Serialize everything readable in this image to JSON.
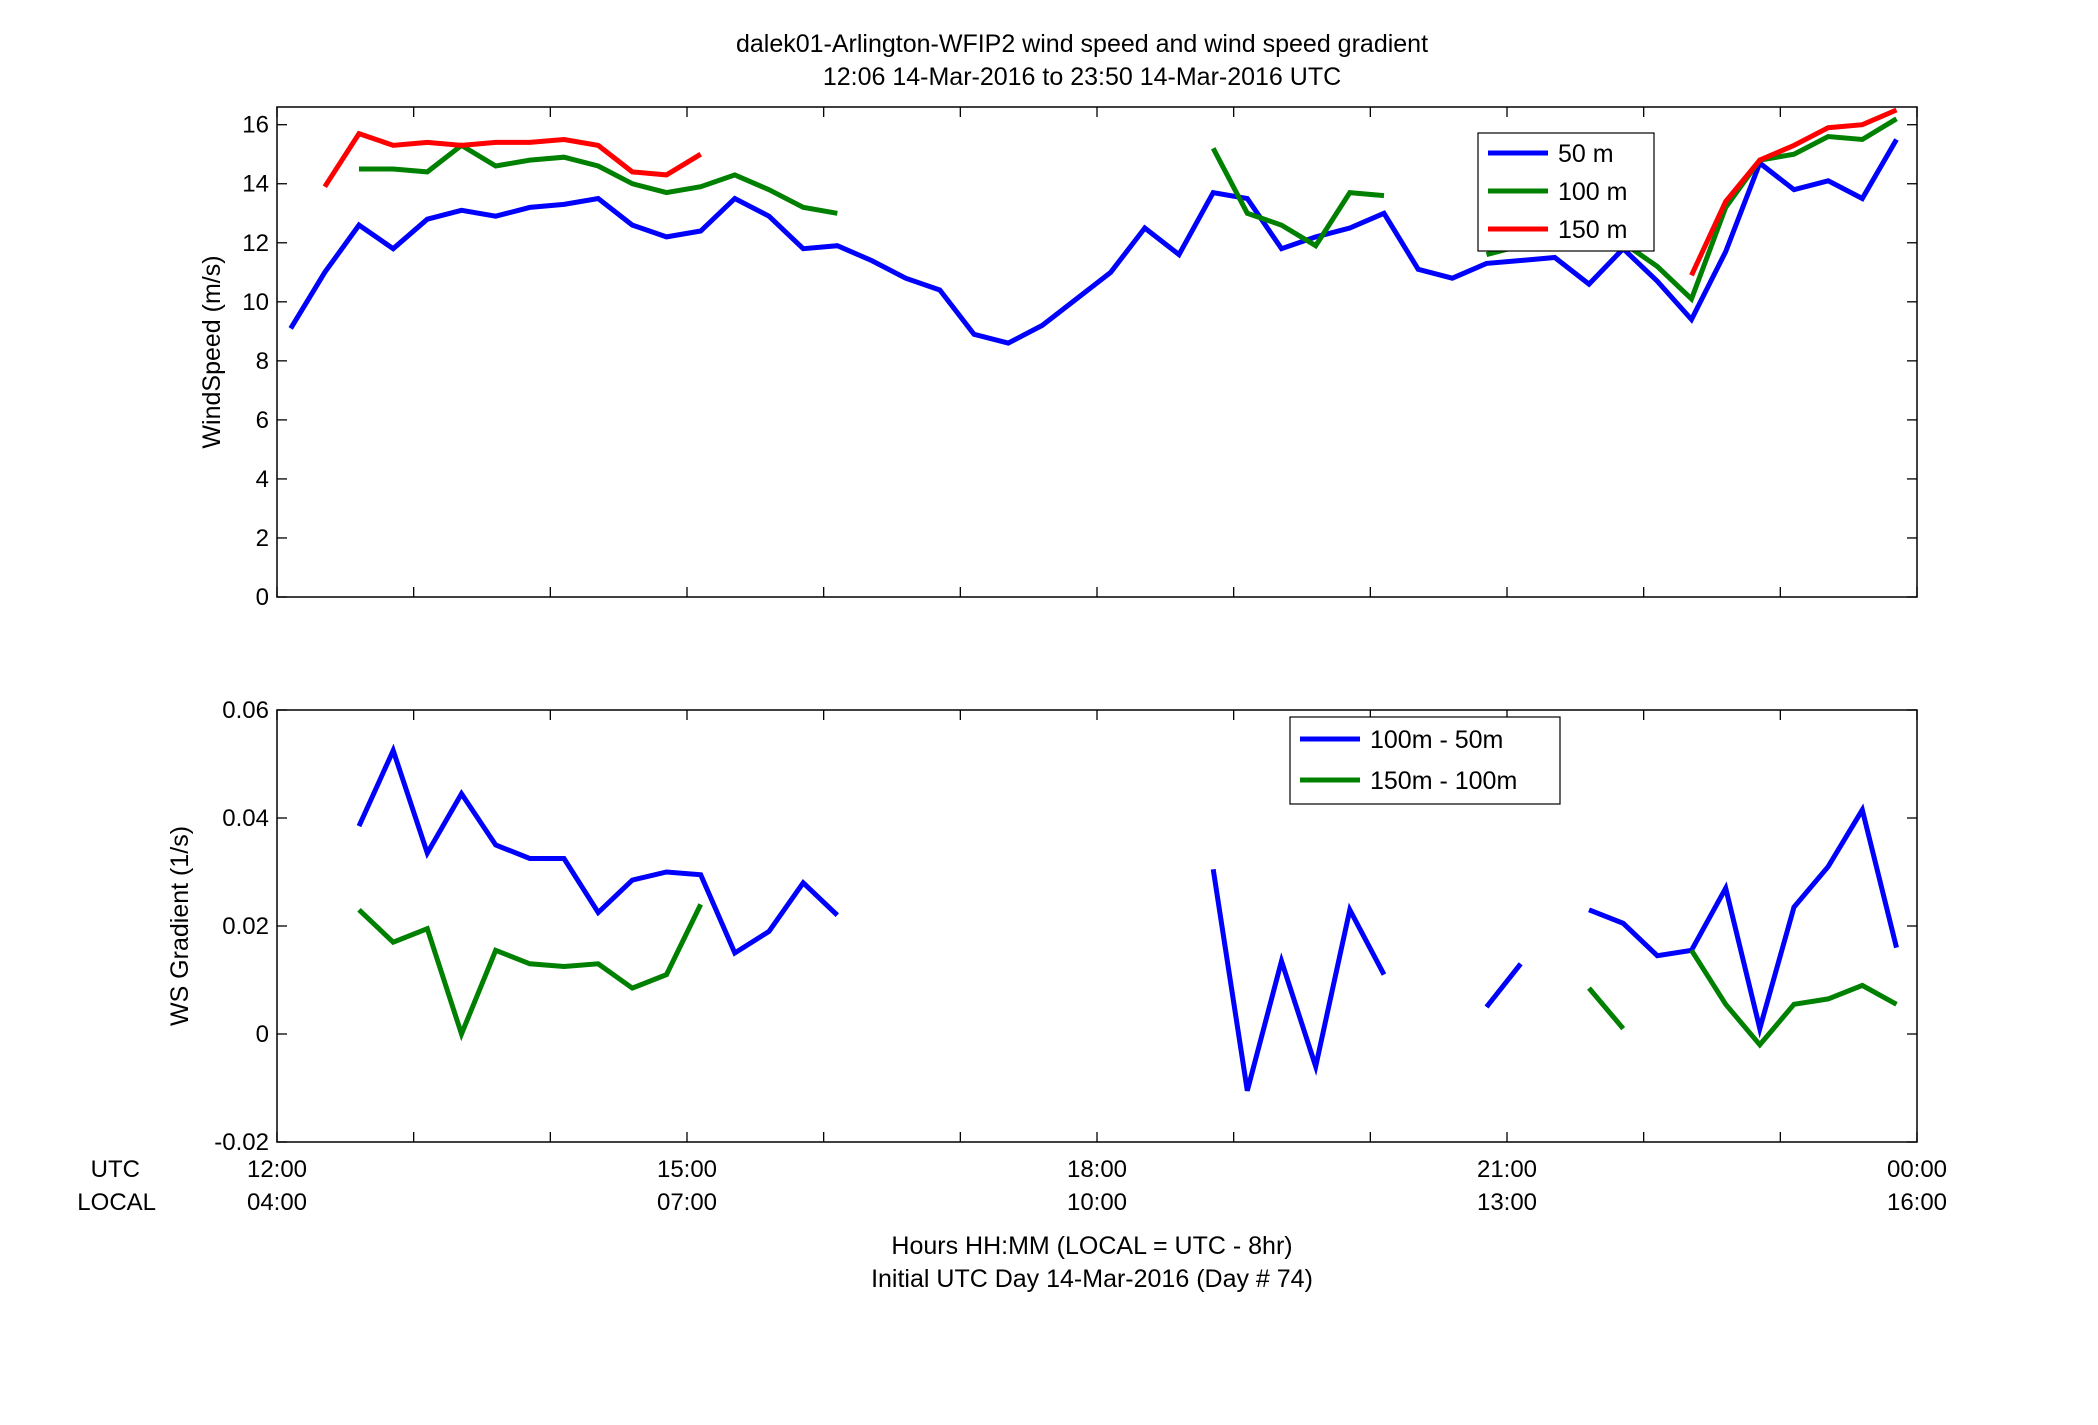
{
  "figure": {
    "title_line1": "dalek01-Arlington-WFIP2  wind speed and wind speed gradient",
    "title_line2": "12:06 14-Mar-2016 to 23:50 14-Mar-2016  UTC",
    "xlabel_line1": "Hours HH:MM  (LOCAL = UTC - 8hr)",
    "xlabel_line2": "Initial UTC Day 14-Mar-2016 (Day # 74)",
    "row_label_utc": "UTC",
    "row_label_local": "LOCAL",
    "utc_ticks": [
      "12:00",
      "15:00",
      "18:00",
      "21:00",
      "00:00"
    ],
    "local_ticks": [
      "04:00",
      "07:00",
      "10:00",
      "13:00",
      "16:00"
    ]
  },
  "chart_data": [
    {
      "type": "line",
      "ylabel": "WindSpeed (m/s)",
      "xlim": [
        12,
        24
      ],
      "ylim": [
        0,
        16.6
      ],
      "yticks": [
        0,
        2,
        4,
        6,
        8,
        10,
        12,
        14,
        16
      ],
      "grid": false,
      "legend_position": "top-right",
      "series": [
        {
          "name": "50 m",
          "color": "#0000ff",
          "segments": [
            [
              [
                12.1,
                9.1
              ],
              [
                12.35,
                11.0
              ],
              [
                12.6,
                12.6
              ],
              [
                12.85,
                11.8
              ],
              [
                13.1,
                12.8
              ],
              [
                13.35,
                13.1
              ],
              [
                13.6,
                12.9
              ],
              [
                13.85,
                13.2
              ],
              [
                14.1,
                13.3
              ],
              [
                14.35,
                13.5
              ],
              [
                14.6,
                12.6
              ],
              [
                14.85,
                12.2
              ],
              [
                15.1,
                12.4
              ],
              [
                15.35,
                13.5
              ],
              [
                15.6,
                12.9
              ],
              [
                15.85,
                11.8
              ],
              [
                16.1,
                11.9
              ],
              [
                16.35,
                11.4
              ],
              [
                16.6,
                10.8
              ],
              [
                16.85,
                10.4
              ],
              [
                17.1,
                8.9
              ],
              [
                17.35,
                8.6
              ],
              [
                17.6,
                9.2
              ],
              [
                17.85,
                10.1
              ],
              [
                18.1,
                11.0
              ],
              [
                18.35,
                12.5
              ],
              [
                18.6,
                11.6
              ],
              [
                18.85,
                13.7
              ],
              [
                19.1,
                13.5
              ],
              [
                19.35,
                11.8
              ],
              [
                19.6,
                12.2
              ],
              [
                19.85,
                12.5
              ],
              [
                20.1,
                13.0
              ],
              [
                20.35,
                11.1
              ],
              [
                20.6,
                10.8
              ],
              [
                20.85,
                11.3
              ],
              [
                21.1,
                11.4
              ],
              [
                21.35,
                11.5
              ],
              [
                21.6,
                10.6
              ],
              [
                21.85,
                11.8
              ],
              [
                22.1,
                10.7
              ],
              [
                22.35,
                9.4
              ],
              [
                22.6,
                11.7
              ],
              [
                22.85,
                14.7
              ],
              [
                23.1,
                13.8
              ],
              [
                23.35,
                14.1
              ],
              [
                23.6,
                13.5
              ],
              [
                23.85,
                15.5
              ]
            ]
          ]
        },
        {
          "name": "100 m",
          "color": "#008000",
          "segments": [
            [
              [
                12.6,
                14.5
              ],
              [
                12.85,
                14.5
              ],
              [
                13.1,
                14.4
              ],
              [
                13.35,
                15.3
              ],
              [
                13.6,
                14.6
              ],
              [
                13.85,
                14.8
              ],
              [
                14.1,
                14.9
              ],
              [
                14.35,
                14.6
              ],
              [
                14.6,
                14.0
              ],
              [
                14.85,
                13.7
              ],
              [
                15.1,
                13.9
              ],
              [
                15.35,
                14.3
              ],
              [
                15.6,
                13.8
              ],
              [
                15.85,
                13.2
              ],
              [
                16.1,
                13.0
              ]
            ],
            [
              [
                18.85,
                15.2
              ],
              [
                19.1,
                13.0
              ],
              [
                19.35,
                12.6
              ],
              [
                19.6,
                11.9
              ],
              [
                19.85,
                13.7
              ],
              [
                20.1,
                13.6
              ]
            ],
            [
              [
                20.85,
                11.6
              ],
              [
                21.1,
                11.9
              ]
            ],
            [
              [
                21.85,
                12.0
              ],
              [
                22.1,
                11.2
              ],
              [
                22.35,
                10.1
              ],
              [
                22.6,
                13.2
              ],
              [
                22.85,
                14.8
              ],
              [
                23.1,
                15.0
              ],
              [
                23.35,
                15.6
              ],
              [
                23.6,
                15.5
              ],
              [
                23.85,
                16.2
              ]
            ]
          ]
        },
        {
          "name": "150 m",
          "color": "#ff0000",
          "segments": [
            [
              [
                12.35,
                13.9
              ],
              [
                12.6,
                15.7
              ],
              [
                12.85,
                15.3
              ],
              [
                13.1,
                15.4
              ],
              [
                13.35,
                15.3
              ],
              [
                13.6,
                15.4
              ],
              [
                13.85,
                15.4
              ],
              [
                14.1,
                15.5
              ],
              [
                14.35,
                15.3
              ],
              [
                14.6,
                14.4
              ],
              [
                14.85,
                14.3
              ],
              [
                15.1,
                15.0
              ]
            ],
            [
              [
                22.35,
                10.9
              ],
              [
                22.6,
                13.4
              ],
              [
                22.85,
                14.8
              ],
              [
                23.1,
                15.3
              ],
              [
                23.35,
                15.9
              ],
              [
                23.6,
                16.0
              ],
              [
                23.85,
                16.5
              ]
            ]
          ]
        }
      ]
    },
    {
      "type": "line",
      "ylabel": "WS Gradient (1/s)",
      "xlim": [
        12,
        24
      ],
      "ylim": [
        -0.02,
        0.06
      ],
      "yticks": [
        -0.02,
        0,
        0.02,
        0.04,
        0.06
      ],
      "grid": false,
      "legend_position": "top-right",
      "series": [
        {
          "name": "100m - 50m",
          "color": "#0000ff",
          "segments": [
            [
              [
                12.6,
                0.0385
              ],
              [
                12.85,
                0.0525
              ],
              [
                13.1,
                0.0335
              ],
              [
                13.35,
                0.0445
              ],
              [
                13.6,
                0.035
              ],
              [
                13.85,
                0.0325
              ],
              [
                14.1,
                0.0325
              ],
              [
                14.35,
                0.0225
              ],
              [
                14.6,
                0.0285
              ],
              [
                14.85,
                0.03
              ],
              [
                15.1,
                0.0295
              ],
              [
                15.35,
                0.015
              ],
              [
                15.6,
                0.019
              ],
              [
                15.85,
                0.028
              ],
              [
                16.1,
                0.022
              ]
            ],
            [
              [
                18.85,
                0.0305
              ],
              [
                19.1,
                -0.0105
              ],
              [
                19.35,
                0.0135
              ],
              [
                19.6,
                -0.006
              ],
              [
                19.85,
                0.023
              ],
              [
                20.1,
                0.011
              ]
            ],
            [
              [
                20.85,
                0.005
              ],
              [
                21.1,
                0.013
              ]
            ],
            [
              [
                21.6,
                0.023
              ],
              [
                21.85,
                0.0205
              ],
              [
                22.1,
                0.0145
              ],
              [
                22.35,
                0.0155
              ],
              [
                22.6,
                0.027
              ],
              [
                22.85,
                0.001
              ],
              [
                23.1,
                0.0235
              ],
              [
                23.35,
                0.031
              ],
              [
                23.6,
                0.0415
              ],
              [
                23.85,
                0.016
              ]
            ]
          ]
        },
        {
          "name": "150m - 100m",
          "color": "#008000",
          "segments": [
            [
              [
                12.6,
                0.023
              ],
              [
                12.85,
                0.017
              ],
              [
                13.1,
                0.0195
              ],
              [
                13.35,
                0.0
              ],
              [
                13.6,
                0.0155
              ],
              [
                13.85,
                0.013
              ],
              [
                14.1,
                0.0125
              ],
              [
                14.35,
                0.013
              ],
              [
                14.6,
                0.0085
              ],
              [
                14.85,
                0.011
              ],
              [
                15.1,
                0.024
              ]
            ],
            [
              [
                21.6,
                0.0085
              ],
              [
                21.85,
                0.001
              ]
            ],
            [
              [
                22.35,
                0.0155
              ],
              [
                22.6,
                0.0055
              ],
              [
                22.85,
                -0.002
              ],
              [
                23.1,
                0.0055
              ],
              [
                23.35,
                0.0065
              ],
              [
                23.6,
                0.009
              ],
              [
                23.85,
                0.0055
              ]
            ]
          ]
        }
      ]
    }
  ]
}
